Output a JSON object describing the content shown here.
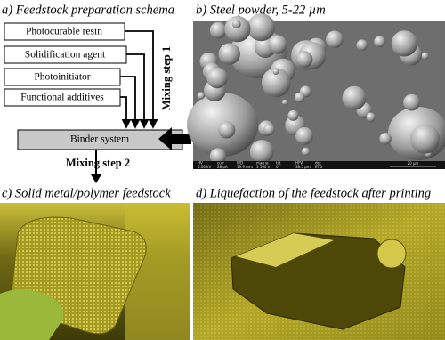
{
  "panel_a": {
    "title": "a) Feedstock preparation schema",
    "inputs": [
      "Photocurable resin",
      "Solidification agent",
      "Photoinitiator",
      "Functional additives"
    ],
    "mixing_step_1": "Mixing step 1",
    "binder": "Binder system",
    "mixing_step_2": "Mixing step 2"
  },
  "panel_b": {
    "title": "b) Steel powder, 5-22 µm",
    "info_headers": [
      "HV",
      "curr",
      "WD",
      "mag ⊞",
      "tilt",
      "HFW",
      "det"
    ],
    "info_values": [
      "5.00 kV",
      "28 pA",
      "19.9 mm",
      "3 500 x",
      "0 °",
      "38.5 µm",
      "ETD"
    ],
    "scale": "20 µm"
  },
  "panel_c": {
    "title": "c) Solid metal/polymer feedstock"
  },
  "panel_d": {
    "title": "d) Liquefaction of the feedstock after printing"
  }
}
